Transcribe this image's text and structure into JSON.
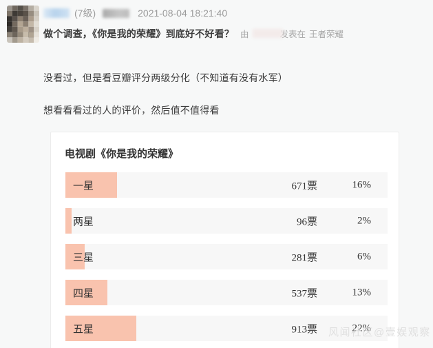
{
  "header": {
    "level": "(7级)",
    "timestamp": "2021-08-04 18:21:40",
    "title": "做个调查，《你是我的荣耀》到底好不好看？",
    "meta_prefix": "由",
    "meta_middle": "发表在",
    "forum": "王者荣耀"
  },
  "body": {
    "line1": "没看过，但是看豆瓣评分两级分化（不知道有没有水军）",
    "line2": "想看看看过的人的评价，然后值不值得看"
  },
  "poll": {
    "title": "电视剧《你是我的荣耀》",
    "bar_color": "#f9c3ae",
    "row_bg": "#f7f7f7",
    "options": [
      {
        "label": "一星",
        "votes": "671票",
        "percent": "16%",
        "pct": 16
      },
      {
        "label": "两星",
        "votes": "96票",
        "percent": "2%",
        "pct": 2
      },
      {
        "label": "三星",
        "votes": "281票",
        "percent": "6%",
        "pct": 6
      },
      {
        "label": "四星",
        "votes": "537票",
        "percent": "13%",
        "pct": 13
      },
      {
        "label": "五星",
        "votes": "913票",
        "percent": "22%",
        "pct": 22
      }
    ]
  },
  "watermark": "风闻社区@壹娱观察"
}
